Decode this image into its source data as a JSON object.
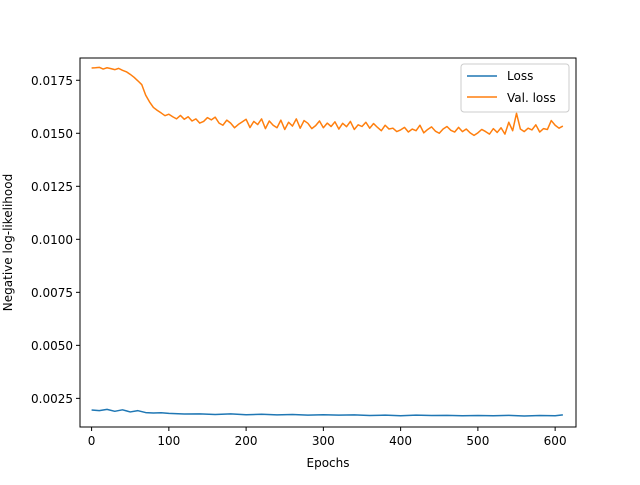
{
  "chart_data": {
    "type": "line",
    "title": "",
    "xlabel": "Epochs",
    "ylabel": "Negative log-likelihood",
    "xlim": [
      -15,
      627
    ],
    "ylim": [
      0.00115,
      0.01855
    ],
    "xticks": [
      0,
      100,
      200,
      300,
      400,
      500,
      600
    ],
    "xtick_labels": [
      "0",
      "100",
      "200",
      "300",
      "400",
      "500",
      "600"
    ],
    "yticks": [
      0.0025,
      0.005,
      0.0075,
      0.01,
      0.0125,
      0.015,
      0.0175
    ],
    "ytick_labels": [
      "0.0025",
      "0.0050",
      "0.0075",
      "0.0100",
      "0.0125",
      "0.0150",
      "0.0175"
    ],
    "grid": false,
    "legend_position": "top-right",
    "series": [
      {
        "name": "Loss",
        "color": "#1f77b4",
        "x": [
          0,
          10,
          20,
          30,
          40,
          50,
          60,
          70,
          80,
          90,
          100,
          120,
          140,
          160,
          180,
          200,
          220,
          240,
          260,
          280,
          300,
          320,
          340,
          360,
          380,
          400,
          420,
          440,
          460,
          480,
          500,
          520,
          540,
          560,
          580,
          600,
          610
        ],
        "y": [
          0.00195,
          0.00192,
          0.00198,
          0.00189,
          0.00196,
          0.00186,
          0.00192,
          0.00183,
          0.00181,
          0.00182,
          0.00179,
          0.00176,
          0.00177,
          0.00174,
          0.00177,
          0.00173,
          0.00175,
          0.00172,
          0.00174,
          0.00171,
          0.00173,
          0.00171,
          0.00172,
          0.00169,
          0.00171,
          0.00168,
          0.00171,
          0.00169,
          0.0017,
          0.00168,
          0.00169,
          0.00168,
          0.0017,
          0.00167,
          0.00169,
          0.00168,
          0.00172
        ]
      },
      {
        "name": "Val. loss",
        "color": "#ff7f0e",
        "x": [
          0,
          5,
          10,
          15,
          20,
          25,
          30,
          35,
          40,
          45,
          50,
          55,
          60,
          65,
          70,
          75,
          80,
          85,
          90,
          95,
          100,
          105,
          110,
          115,
          120,
          125,
          130,
          135,
          140,
          145,
          150,
          155,
          160,
          165,
          170,
          175,
          180,
          185,
          190,
          195,
          200,
          205,
          210,
          215,
          220,
          225,
          230,
          235,
          240,
          245,
          250,
          255,
          260,
          265,
          270,
          275,
          280,
          285,
          290,
          295,
          300,
          305,
          310,
          315,
          320,
          325,
          330,
          335,
          340,
          345,
          350,
          355,
          360,
          365,
          370,
          375,
          380,
          385,
          390,
          395,
          400,
          405,
          410,
          415,
          420,
          425,
          430,
          435,
          440,
          445,
          450,
          455,
          460,
          465,
          470,
          475,
          480,
          485,
          490,
          495,
          500,
          505,
          510,
          515,
          520,
          525,
          530,
          535,
          540,
          545,
          550,
          555,
          560,
          565,
          570,
          575,
          580,
          585,
          590,
          595,
          600,
          605,
          610
        ],
        "y": [
          0.01808,
          0.01809,
          0.01811,
          0.01803,
          0.01809,
          0.01805,
          0.018,
          0.01806,
          0.01797,
          0.0179,
          0.01778,
          0.01764,
          0.01747,
          0.01729,
          0.0168,
          0.01648,
          0.01622,
          0.01608,
          0.01596,
          0.01583,
          0.0159,
          0.01578,
          0.01568,
          0.01584,
          0.01566,
          0.01578,
          0.01558,
          0.01568,
          0.01548,
          0.01556,
          0.01574,
          0.01563,
          0.01576,
          0.01548,
          0.01538,
          0.01562,
          0.01548,
          0.01526,
          0.01542,
          0.01554,
          0.01566,
          0.01527,
          0.01556,
          0.01541,
          0.01568,
          0.01522,
          0.01558,
          0.01538,
          0.01526,
          0.01562,
          0.01518,
          0.01552,
          0.01534,
          0.01568,
          0.01524,
          0.0156,
          0.01547,
          0.01522,
          0.01536,
          0.01558,
          0.01526,
          0.01548,
          0.01532,
          0.01554,
          0.0152,
          0.01547,
          0.01531,
          0.01556,
          0.01518,
          0.0154,
          0.01532,
          0.01552,
          0.01524,
          0.01546,
          0.01528,
          0.01512,
          0.01538,
          0.0152,
          0.01524,
          0.01508,
          0.01516,
          0.01528,
          0.01506,
          0.0152,
          0.01512,
          0.01538,
          0.01502,
          0.01518,
          0.0153,
          0.0151,
          0.015,
          0.0152,
          0.01532,
          0.01514,
          0.01506,
          0.01528,
          0.01508,
          0.0152,
          0.01502,
          0.0149,
          0.01502,
          0.01518,
          0.01508,
          0.01496,
          0.01522,
          0.01504,
          0.01526,
          0.01496,
          0.01552,
          0.01512,
          0.01594,
          0.0152,
          0.01508,
          0.01524,
          0.01516,
          0.0154,
          0.01506,
          0.01522,
          0.01518,
          0.0156,
          0.01538,
          0.01524,
          0.01534
        ]
      }
    ]
  }
}
